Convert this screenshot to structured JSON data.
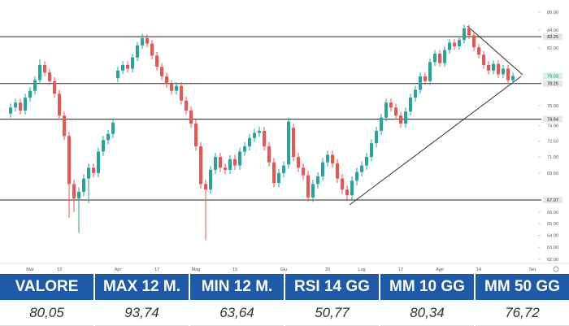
{
  "chart_data": {
    "type": "candlestick",
    "categories": [
      null,
      null,
      null,
      null,
      "Mar",
      null,
      null,
      null,
      null,
      null,
      "13",
      null,
      null,
      null,
      null,
      null,
      null,
      null,
      null,
      null,
      null,
      null,
      "Apr",
      null,
      null,
      null,
      null,
      null,
      null,
      null,
      "17",
      null,
      null,
      null,
      null,
      null,
      null,
      null,
      "Mag",
      null,
      null,
      null,
      null,
      null,
      null,
      null,
      "15",
      null,
      null,
      null,
      null,
      null,
      null,
      null,
      null,
      null,
      "Giu",
      null,
      null,
      null,
      null,
      null,
      null,
      null,
      null,
      "20",
      null,
      null,
      null,
      null,
      null,
      null,
      "Lug",
      null,
      null,
      null,
      null,
      null,
      null,
      null,
      "17",
      null,
      null,
      null,
      null,
      null,
      null,
      null,
      "Ago",
      null,
      null,
      null,
      null,
      null,
      null,
      null,
      "14",
      null,
      null,
      null,
      null,
      null,
      null,
      null,
      null,
      null,
      null,
      "Set"
    ],
    "open": [
      75.2,
      75.8,
      76.3,
      75.5,
      76.8,
      77.5,
      78.6,
      80.2,
      79.4,
      78.5,
      77.2,
      75.0,
      73.0,
      68.5,
      67.2,
      67.8,
      69.0,
      70.0,
      69.5,
      71.5,
      72.6,
      73.2,
      78.8,
      79.6,
      80.2,
      79.8,
      81.0,
      82.3,
      83.1,
      82.5,
      81.2,
      80.0,
      79.0,
      78.2,
      77.5,
      78.0,
      76.5,
      75.5,
      74.2,
      72.0,
      68.5,
      68.0,
      69.8,
      71.0,
      70.0,
      69.8,
      70.8,
      70.2,
      71.5,
      72.0,
      72.8,
      73.3,
      73.5,
      72.0,
      70.5,
      68.6,
      69.5,
      70.3,
      73.8,
      71.0,
      70.0,
      69.3,
      67.3,
      68.5,
      69.2,
      70.5,
      71.2,
      70.4,
      69.0,
      68.0,
      67.5,
      68.8,
      69.6,
      70.2,
      71.0,
      72.3,
      73.5,
      74.8,
      76.3,
      75.8,
      75.0,
      74.2,
      75.4,
      76.8,
      77.6,
      79.0,
      78.5,
      80.5,
      81.4,
      80.4,
      81.8,
      82.6,
      82.2,
      82.9,
      84.2,
      83.4,
      82.1,
      81.3,
      80.2,
      79.6,
      80.3,
      79.2,
      79.8,
      78.6,
      null,
      null,
      null,
      null
    ],
    "high": [
      76.2,
      76.7,
      76.7,
      77.2,
      77.9,
      79.0,
      80.8,
      80.6,
      79.8,
      78.9,
      77.6,
      75.4,
      73.4,
      68.9,
      68.2,
      69.4,
      70.4,
      70.4,
      71.9,
      73.0,
      73.6,
      74.7,
      80.0,
      80.6,
      80.6,
      81.4,
      82.7,
      83.6,
      83.5,
      82.9,
      81.6,
      80.4,
      79.4,
      78.6,
      78.4,
      78.4,
      76.9,
      75.9,
      74.6,
      72.4,
      68.9,
      70.2,
      71.4,
      71.4,
      70.4,
      71.2,
      71.2,
      71.9,
      72.4,
      73.2,
      73.7,
      73.9,
      73.9,
      72.4,
      70.9,
      69.9,
      70.6,
      74.8,
      74.2,
      71.4,
      70.4,
      69.7,
      68.9,
      69.6,
      70.9,
      71.6,
      71.6,
      70.8,
      69.4,
      68.4,
      69.2,
      70.0,
      70.6,
      71.4,
      72.7,
      73.9,
      75.2,
      76.7,
      76.7,
      76.2,
      75.4,
      75.8,
      77.2,
      78.0,
      79.4,
      79.4,
      80.9,
      81.8,
      81.8,
      82.2,
      83.0,
      83.0,
      83.3,
      84.6,
      84.6,
      83.8,
      82.5,
      81.7,
      80.6,
      80.7,
      80.7,
      80.2,
      80.2,
      79.4,
      null,
      null,
      null,
      null
    ],
    "low": [
      74.8,
      75.4,
      75.1,
      75.1,
      76.4,
      77.1,
      78.2,
      79.0,
      78.1,
      76.8,
      74.6,
      72.6,
      65.5,
      66.0,
      64.2,
      67.4,
      66.8,
      69.1,
      69.1,
      71.1,
      72.2,
      72.8,
      78.4,
      79.2,
      79.4,
      79.4,
      80.6,
      81.9,
      82.1,
      80.8,
      79.6,
      78.6,
      77.8,
      77.1,
      77.1,
      76.1,
      75.1,
      73.8,
      71.6,
      68.1,
      63.6,
      67.6,
      69.4,
      69.6,
      69.4,
      69.4,
      69.8,
      69.8,
      71.1,
      71.6,
      72.4,
      72.9,
      71.6,
      70.1,
      68.2,
      68.2,
      69.1,
      69.9,
      70.6,
      69.6,
      68.9,
      66.9,
      66.9,
      68.1,
      68.8,
      70.1,
      70.0,
      68.6,
      67.6,
      67.1,
      67.1,
      68.4,
      69.2,
      69.8,
      70.6,
      71.9,
      73.1,
      74.4,
      75.4,
      74.6,
      73.8,
      73.8,
      75.0,
      76.4,
      77.2,
      78.1,
      78.1,
      80.1,
      80.0,
      80.0,
      81.4,
      81.8,
      81.8,
      82.5,
      83.0,
      81.7,
      80.9,
      79.8,
      79.2,
      79.2,
      78.8,
      78.8,
      78.2,
      78.2,
      null,
      null,
      null,
      null
    ],
    "close": [
      75.8,
      76.3,
      75.5,
      76.8,
      77.5,
      78.6,
      80.2,
      79.4,
      78.5,
      77.2,
      75.0,
      73.0,
      68.5,
      67.2,
      67.8,
      69.0,
      70.0,
      69.5,
      71.5,
      72.6,
      73.2,
      74.3,
      79.6,
      80.2,
      79.8,
      81.0,
      82.3,
      83.1,
      82.5,
      81.2,
      80.0,
      79.0,
      78.2,
      77.5,
      78.0,
      76.5,
      75.5,
      74.2,
      72.0,
      68.5,
      68.0,
      69.8,
      71.0,
      70.0,
      69.8,
      70.8,
      70.2,
      71.5,
      72.0,
      72.8,
      73.3,
      73.5,
      72.0,
      70.5,
      68.6,
      69.5,
      70.2,
      74.4,
      71.0,
      70.0,
      69.3,
      67.3,
      68.5,
      69.2,
      70.5,
      71.2,
      70.4,
      69.0,
      68.0,
      67.5,
      68.8,
      69.6,
      70.2,
      71.0,
      72.3,
      73.5,
      74.8,
      76.3,
      75.8,
      75.0,
      74.2,
      75.4,
      76.8,
      77.6,
      79.0,
      78.5,
      80.5,
      81.4,
      80.4,
      81.8,
      82.6,
      82.2,
      82.9,
      84.2,
      83.4,
      82.1,
      81.3,
      80.2,
      79.6,
      80.3,
      79.2,
      79.8,
      78.6,
      79.03,
      null,
      null,
      null,
      null
    ],
    "up_color": "#26a69a",
    "down_color": "#ef5350",
    "ylim": [
      61.27,
      86.93
    ],
    "log_y": true,
    "yticks": [
      {
        "value": 62,
        "label": "62.00"
      },
      {
        "value": 63,
        "label": "63.00"
      },
      {
        "value": 64,
        "label": "64.00"
      },
      {
        "value": 65,
        "label": "65.00"
      },
      {
        "value": 66,
        "label": "66.00"
      },
      {
        "value": 69.5,
        "label": "69.50"
      },
      {
        "value": 71,
        "label": "71.00"
      },
      {
        "value": 72.5,
        "label": "72.50"
      },
      {
        "value": 74,
        "label": "74.00"
      },
      {
        "value": 76,
        "label": "76.00"
      },
      {
        "value": 82,
        "label": "82.00"
      },
      {
        "value": 84,
        "label": "84.00"
      },
      {
        "value": 86,
        "label": "86.00"
      }
    ],
    "levels": [
      {
        "value": 83.25,
        "label": "83.25"
      },
      {
        "value": 78.25,
        "label": "78.25"
      },
      {
        "value": 74.64,
        "label": "74.64"
      },
      {
        "value": 67.07,
        "label": "67.07"
      }
    ],
    "last_price": {
      "value": 79.03,
      "label": "79.03"
    },
    "grid": false
  },
  "table": {
    "header": [
      "VALORE",
      "MAX 12 M.",
      "MIN 12 M.",
      "RSI 14 GG",
      "MM 10 GG",
      "MM 50 GG"
    ],
    "rows": [
      [
        "80,05",
        "93,74",
        "63,64",
        "50,77",
        "80,34",
        "76,72"
      ]
    ]
  }
}
